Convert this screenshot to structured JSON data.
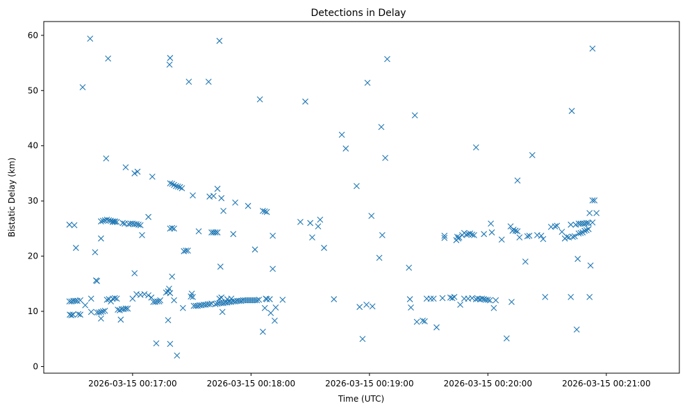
{
  "chart_data": {
    "type": "scatter",
    "title": "Detections in Delay",
    "xlabel": "Time (UTC)",
    "ylabel": "Bistatic Delay (km)",
    "x_tick_labels": [
      "2026-03-15 00:17:00",
      "2026-03-15 00:18:00",
      "2026-03-15 00:19:00",
      "2026-03-15 00:20:00",
      "2026-03-15 00:21:00"
    ],
    "x_tick_seconds": [
      1020,
      1080,
      1140,
      1200,
      1260
    ],
    "y_ticks": [
      0,
      10,
      20,
      30,
      40,
      50,
      60
    ],
    "xlim_seconds": [
      975,
      1297
    ],
    "ylim": [
      -1.2,
      62.5
    ],
    "marker": "x",
    "color": "#1f77b4",
    "grid": false,
    "series": [
      {
        "points": [
          [
            988.0,
            25.7
          ],
          [
            990.5,
            25.6
          ],
          [
            991.3,
            21.5
          ],
          [
            988.2,
            9.4
          ],
          [
            989.0,
            9.3
          ],
          [
            989.8,
            9.4
          ],
          [
            988.0,
            11.8
          ],
          [
            989.0,
            11.8
          ],
          [
            990.0,
            11.9
          ],
          [
            991.0,
            11.9
          ],
          [
            992.0,
            11.9
          ],
          [
            992.5,
            9.5
          ],
          [
            993.5,
            9.4
          ],
          [
            993.5,
            12.0
          ],
          [
            994.7,
            50.6
          ],
          [
            996.0,
            11.1
          ],
          [
            998.5,
            59.4
          ],
          [
            999.0,
            12.3
          ],
          [
            999.0,
            9.9
          ],
          [
            1001.0,
            20.7
          ],
          [
            1001.5,
            15.6
          ],
          [
            1002.0,
            15.5
          ],
          [
            1002.0,
            9.8
          ],
          [
            1003.0,
            9.8
          ],
          [
            1004.0,
            9.9
          ],
          [
            1005.0,
            10.0
          ],
          [
            1004.0,
            8.7
          ],
          [
            1004.0,
            23.2
          ],
          [
            1006.0,
            10.1
          ],
          [
            1004.0,
            26.3
          ],
          [
            1005.0,
            26.4
          ],
          [
            1006.0,
            26.5
          ],
          [
            1007.0,
            26.6
          ],
          [
            1008.0,
            26.5
          ],
          [
            1009.0,
            26.4
          ],
          [
            1010.0,
            26.3
          ],
          [
            1011.0,
            26.2
          ],
          [
            1006.6,
            37.7
          ],
          [
            1007.6,
            55.8
          ],
          [
            1007.0,
            12.1
          ],
          [
            1008.0,
            12.2
          ],
          [
            1009.0,
            11.8
          ],
          [
            1010.0,
            12.3
          ],
          [
            1011.0,
            12.4
          ],
          [
            1012.0,
            12.3
          ],
          [
            1010.0,
            26.2
          ],
          [
            1011.0,
            26.3
          ],
          [
            1012.0,
            26.2
          ],
          [
            1012.5,
            10.3
          ],
          [
            1013.5,
            10.2
          ],
          [
            1014.0,
            8.5
          ],
          [
            1014.5,
            10.4
          ],
          [
            1015.5,
            10.4
          ],
          [
            1016.5,
            10.5
          ],
          [
            1017.5,
            10.5
          ],
          [
            1015.0,
            26.0
          ],
          [
            1016.0,
            25.9
          ],
          [
            1016.5,
            36.1
          ],
          [
            1018.0,
            25.8
          ],
          [
            1019.0,
            25.9
          ],
          [
            1020.0,
            25.9
          ],
          [
            1021.0,
            25.8
          ],
          [
            1022.0,
            25.8
          ],
          [
            1023.0,
            25.7
          ],
          [
            1024.0,
            25.6
          ],
          [
            1020.0,
            12.3
          ],
          [
            1021.0,
            16.9
          ],
          [
            1021.0,
            35.0
          ],
          [
            1022.0,
            13.1
          ],
          [
            1022.5,
            35.3
          ],
          [
            1024.0,
            13.0
          ],
          [
            1024.8,
            23.8
          ],
          [
            1026.0,
            13.1
          ],
          [
            1028.0,
            27.1
          ],
          [
            1028.0,
            12.9
          ],
          [
            1029.5,
            12.5
          ],
          [
            1030.0,
            34.4
          ],
          [
            1030.5,
            11.7
          ],
          [
            1031.5,
            11.7
          ],
          [
            1032.5,
            11.8
          ],
          [
            1033.5,
            11.8
          ],
          [
            1032.0,
            4.2
          ],
          [
            1034.0,
            12.0
          ],
          [
            1037.0,
            13.4
          ],
          [
            1038.0,
            13.6
          ],
          [
            1038.5,
            14.1
          ],
          [
            1038.0,
            8.4
          ],
          [
            1039.0,
            13.3
          ],
          [
            1038.7,
            54.7
          ],
          [
            1039.0,
            55.9
          ],
          [
            1039.0,
            33.2
          ],
          [
            1040.0,
            33.1
          ],
          [
            1041.0,
            32.9
          ],
          [
            1042.0,
            32.7
          ],
          [
            1043.0,
            32.6
          ],
          [
            1044.0,
            32.5
          ],
          [
            1045.0,
            32.3
          ],
          [
            1039.0,
            4.1
          ],
          [
            1039.0,
            25.0
          ],
          [
            1040.0,
            25.1
          ],
          [
            1041.0,
            25.0
          ],
          [
            1040.0,
            16.3
          ],
          [
            1041.0,
            12.0
          ],
          [
            1042.5,
            2.0
          ],
          [
            1046.0,
            20.9
          ],
          [
            1047.0,
            21.0
          ],
          [
            1048.0,
            21.0
          ],
          [
            1045.5,
            10.6
          ],
          [
            1048.5,
            51.6
          ],
          [
            1049.5,
            12.7
          ],
          [
            1050.0,
            13.2
          ],
          [
            1050.5,
            12.6
          ],
          [
            1050.5,
            31.0
          ],
          [
            1051.0,
            11.0
          ],
          [
            1052.0,
            11.0
          ],
          [
            1053.0,
            11.0
          ],
          [
            1054.0,
            11.1
          ],
          [
            1055.0,
            11.1
          ],
          [
            1056.0,
            11.2
          ],
          [
            1057.0,
            11.2
          ],
          [
            1058.0,
            11.3
          ],
          [
            1059.0,
            11.3
          ],
          [
            1060.0,
            11.4
          ],
          [
            1053.5,
            24.5
          ],
          [
            1058.5,
            51.6
          ],
          [
            1059.0,
            30.8
          ],
          [
            1060.0,
            24.3
          ],
          [
            1061.0,
            24.3
          ],
          [
            1062.0,
            24.3
          ],
          [
            1063.0,
            24.3
          ],
          [
            1061.0,
            30.9
          ],
          [
            1063.0,
            32.2
          ],
          [
            1064.0,
            59.0
          ],
          [
            1062.0,
            11.3
          ],
          [
            1063.0,
            11.4
          ],
          [
            1064.0,
            11.5
          ],
          [
            1064.0,
            12.3
          ],
          [
            1064.5,
            18.1
          ],
          [
            1065.0,
            30.5
          ],
          [
            1065.0,
            12.5
          ],
          [
            1065.5,
            9.9
          ],
          [
            1066.0,
            28.2
          ],
          [
            1065.0,
            11.5
          ],
          [
            1066.0,
            11.5
          ],
          [
            1067.0,
            11.6
          ],
          [
            1068.0,
            11.6
          ],
          [
            1069.0,
            11.7
          ],
          [
            1070.0,
            11.7
          ],
          [
            1071.0,
            11.8
          ],
          [
            1072.0,
            11.8
          ],
          [
            1073.0,
            11.9
          ],
          [
            1074.0,
            11.9
          ],
          [
            1075.0,
            11.9
          ],
          [
            1076.0,
            12.0
          ],
          [
            1077.0,
            12.0
          ],
          [
            1078.0,
            12.0
          ],
          [
            1079.0,
            12.0
          ],
          [
            1080.0,
            12.0
          ],
          [
            1081.0,
            12.0
          ],
          [
            1082.0,
            12.0
          ],
          [
            1083.0,
            12.0
          ],
          [
            1084.0,
            12.1
          ],
          [
            1068.0,
            12.2
          ],
          [
            1070.0,
            12.3
          ],
          [
            1071.0,
            24.0
          ],
          [
            1072.0,
            29.7
          ],
          [
            1078.5,
            29.1
          ],
          [
            1082.0,
            21.2
          ],
          [
            1084.5,
            48.4
          ],
          [
            1086.0,
            28.2
          ],
          [
            1087.0,
            28.1
          ],
          [
            1088.0,
            28.0
          ],
          [
            1086.0,
            6.3
          ],
          [
            1087.0,
            10.6
          ],
          [
            1087.5,
            12.3
          ],
          [
            1088.0,
            12.2
          ],
          [
            1089.5,
            12.2
          ],
          [
            1090.0,
            9.7
          ],
          [
            1091.0,
            17.7
          ],
          [
            1091.0,
            23.7
          ],
          [
            1092.0,
            8.3
          ],
          [
            1092.5,
            10.7
          ],
          [
            1096.0,
            12.1
          ],
          [
            1105.0,
            26.2
          ],
          [
            1107.5,
            48.0
          ],
          [
            1110.0,
            26.0
          ],
          [
            1111.0,
            23.4
          ],
          [
            1114.0,
            25.4
          ],
          [
            1115.0,
            26.6
          ],
          [
            1117.0,
            21.5
          ],
          [
            1122.0,
            12.2
          ],
          [
            1126.0,
            42.0
          ],
          [
            1128.0,
            39.5
          ],
          [
            1133.5,
            32.7
          ],
          [
            1135.0,
            10.8
          ],
          [
            1136.5,
            5.0
          ],
          [
            1138.5,
            11.2
          ],
          [
            1139.0,
            51.4
          ],
          [
            1141.0,
            27.3
          ],
          [
            1141.5,
            10.9
          ],
          [
            1145.0,
            19.7
          ],
          [
            1146.0,
            43.4
          ],
          [
            1146.5,
            23.8
          ],
          [
            1148.0,
            37.8
          ],
          [
            1149.0,
            55.7
          ],
          [
            1160.0,
            17.9
          ],
          [
            1160.5,
            12.2
          ],
          [
            1161.0,
            10.7
          ],
          [
            1163.0,
            45.5
          ],
          [
            1164.0,
            8.1
          ],
          [
            1167.0,
            8.3
          ],
          [
            1168.0,
            8.2
          ],
          [
            1169.0,
            12.3
          ],
          [
            1171.0,
            12.3
          ],
          [
            1172.5,
            12.3
          ],
          [
            1174.0,
            7.1
          ],
          [
            1177.0,
            12.4
          ],
          [
            1178.0,
            23.3
          ],
          [
            1178.0,
            23.7
          ],
          [
            1181.0,
            12.5
          ],
          [
            1182.0,
            12.4
          ],
          [
            1183.0,
            12.6
          ],
          [
            1184.0,
            22.9
          ],
          [
            1184.5,
            23.5
          ],
          [
            1185.0,
            23.2
          ],
          [
            1185.5,
            23.4
          ],
          [
            1186.0,
            11.2
          ],
          [
            1187.0,
            23.8
          ],
          [
            1188.0,
            24.2
          ],
          [
            1188.0,
            12.3
          ],
          [
            1189.0,
            23.9
          ],
          [
            1190.0,
            24.0
          ],
          [
            1190.0,
            12.3
          ],
          [
            1191.0,
            24.1
          ],
          [
            1192.0,
            23.9
          ],
          [
            1193.0,
            23.8
          ],
          [
            1192.0,
            12.4
          ],
          [
            1194.0,
            39.7
          ],
          [
            1194.0,
            12.2
          ],
          [
            1195.0,
            12.3
          ],
          [
            1196.0,
            12.2
          ],
          [
            1197.0,
            12.3
          ],
          [
            1198.0,
            12.2
          ],
          [
            1199.0,
            12.1
          ],
          [
            1200.0,
            12.1
          ],
          [
            1201.0,
            12.0
          ],
          [
            1198.0,
            24.0
          ],
          [
            1201.5,
            25.9
          ],
          [
            1202.0,
            24.3
          ],
          [
            1203.0,
            10.6
          ],
          [
            1204.0,
            12.0
          ],
          [
            1207.0,
            23.0
          ],
          [
            1209.5,
            5.1
          ],
          [
            1211.5,
            25.4
          ],
          [
            1212.0,
            11.7
          ],
          [
            1212.5,
            24.6
          ],
          [
            1213.0,
            24.8
          ],
          [
            1214.0,
            24.6
          ],
          [
            1215.0,
            24.5
          ],
          [
            1215.0,
            33.7
          ],
          [
            1216.0,
            23.4
          ],
          [
            1219.0,
            19.0
          ],
          [
            1220.0,
            23.6
          ],
          [
            1221.0,
            23.7
          ],
          [
            1222.5,
            38.3
          ],
          [
            1225.0,
            23.8
          ],
          [
            1227.0,
            23.7
          ],
          [
            1228.0,
            23.1
          ],
          [
            1229.0,
            12.6
          ],
          [
            1232.0,
            25.3
          ],
          [
            1234.0,
            25.4
          ],
          [
            1235.0,
            25.5
          ],
          [
            1237.5,
            24.4
          ],
          [
            1239.0,
            23.2
          ],
          [
            1240.0,
            23.5
          ],
          [
            1241.0,
            23.4
          ],
          [
            1242.0,
            25.7
          ],
          [
            1242.0,
            12.6
          ],
          [
            1242.5,
            46.3
          ],
          [
            1243.0,
            23.5
          ],
          [
            1244.0,
            23.6
          ],
          [
            1244.5,
            25.7
          ],
          [
            1245.0,
            6.7
          ],
          [
            1245.5,
            19.5
          ],
          [
            1246.0,
            24.1
          ],
          [
            1246.0,
            25.9
          ],
          [
            1247.0,
            24.2
          ],
          [
            1247.0,
            25.9
          ],
          [
            1248.0,
            24.3
          ],
          [
            1248.0,
            25.9
          ],
          [
            1249.0,
            24.6
          ],
          [
            1249.0,
            25.9
          ],
          [
            1250.0,
            24.7
          ],
          [
            1250.0,
            26.0
          ],
          [
            1251.0,
            24.9
          ],
          [
            1251.0,
            26.0
          ],
          [
            1251.5,
            27.8
          ],
          [
            1251.5,
            12.6
          ],
          [
            1252.0,
            18.3
          ],
          [
            1253.0,
            57.6
          ],
          [
            1253.0,
            26.1
          ],
          [
            1253.0,
            30.1
          ],
          [
            1254.0,
            30.1
          ],
          [
            1255.0,
            27.8
          ]
        ]
      }
    ]
  }
}
